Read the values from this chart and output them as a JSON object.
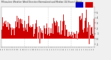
{
  "title": "Milwaukee Weather Wind Direction Normalized and Median (24 Hours) (New)",
  "bg_color": "#f0f0f0",
  "plot_bg_color": "#ffffff",
  "grid_color": "#aaaaaa",
  "bar_color": "#cc0000",
  "line_color": "#0000bb",
  "ylim": [
    -1.5,
    6
  ],
  "ytick_vals": [
    5,
    4,
    3,
    2,
    1,
    0,
    -1
  ],
  "ytick_labels": [
    "5",
    "4",
    "3",
    "2",
    "1",
    "0",
    "-1"
  ],
  "n_points": 288,
  "legend_color1": "#0000bb",
  "legend_color2": "#cc0000",
  "seed": 12345
}
